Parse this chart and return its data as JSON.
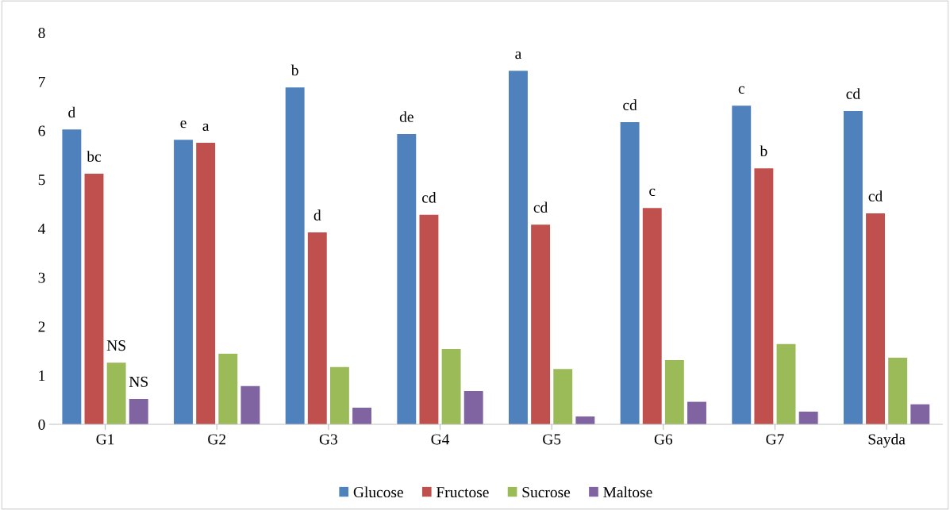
{
  "chart_data": {
    "type": "bar",
    "categories": [
      "G1",
      "G2",
      "G3",
      "G4",
      "G5",
      "G6",
      "G7",
      "Sayda"
    ],
    "series": [
      {
        "name": "Glucose",
        "color": "#4f81bd",
        "values": [
          6.02,
          5.81,
          6.88,
          5.93,
          7.22,
          6.17,
          6.51,
          6.4
        ],
        "value_labels": [
          "d",
          "e",
          "b",
          "de",
          "a",
          "cd",
          "c",
          "cd"
        ]
      },
      {
        "name": "Fructose",
        "color": "#c0504d",
        "values": [
          5.12,
          5.75,
          3.92,
          4.28,
          4.08,
          4.42,
          5.23,
          4.31
        ],
        "value_labels": [
          "bc",
          "a",
          "d",
          "cd",
          "cd",
          "c",
          "b",
          "cd"
        ]
      },
      {
        "name": "Sucrose",
        "color": "#9bbb59",
        "values": [
          1.26,
          1.44,
          1.17,
          1.54,
          1.13,
          1.31,
          1.64,
          1.36
        ],
        "value_labels": [
          "NS",
          null,
          null,
          null,
          null,
          null,
          null,
          null
        ]
      },
      {
        "name": "Maltose",
        "color": "#8064a2",
        "values": [
          0.52,
          0.78,
          0.34,
          0.68,
          0.16,
          0.46,
          0.26,
          0.41
        ],
        "value_labels": [
          "NS",
          null,
          null,
          null,
          null,
          null,
          null,
          null
        ]
      }
    ],
    "ylim": [
      0,
      8
    ],
    "yticks": [
      0,
      1,
      2,
      3,
      4,
      5,
      6,
      7,
      8
    ],
    "grid": false,
    "legend": "bottom"
  }
}
